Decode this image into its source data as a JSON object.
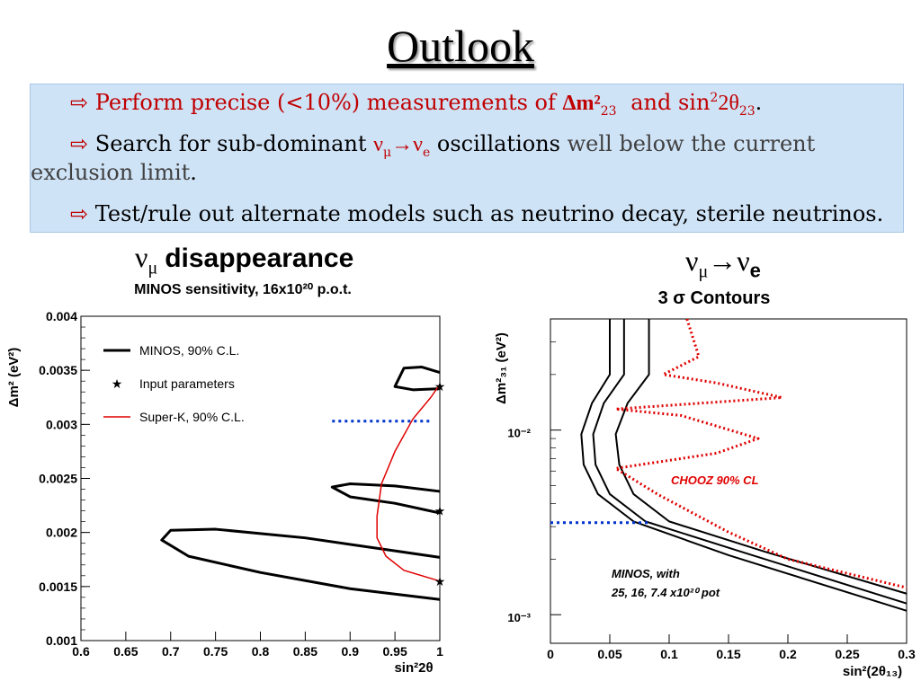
{
  "slide": {
    "title": "Outlook",
    "bullets": {
      "b1": {
        "text": "Perform precise (<10%) measurements of ",
        "dm": "Δm²",
        "dm_sub": "23",
        "and": "and sin",
        "sup": "2",
        "two_theta": "2θ",
        "theta_sub": "23",
        "period": "."
      },
      "b2": {
        "t1": "Search for sub-dominant ",
        "nu": "ν",
        "mu": "μ",
        "arrow": "→",
        "nu2": "ν",
        "e": "e",
        "t2": " oscillations",
        "t3": " well below the current",
        "line2": "exclusion limit",
        "period": "."
      },
      "b3": {
        "text": "Test/rule out alternate models such as neutrino decay, sterile neutrinos."
      }
    },
    "arrow_glyph": "⇨"
  },
  "left_panel": {
    "heading_nu": "ν",
    "heading_mu": "μ",
    "heading_text": "disappearance"
  },
  "right_panel": {
    "heading_nu": "ν",
    "heading_mu": "μ",
    "heading_arrow": "→",
    "heading_nu2": "ν",
    "heading_e": "e"
  },
  "chart_data": [
    {
      "type": "line",
      "title": "MINOS sensitivity, 16x10²⁰ p.o.t.",
      "xlabel": "sin²2θ",
      "ylabel": "Δm² (eV²)",
      "xlim": [
        0.6,
        1.0
      ],
      "ylim": [
        0.001,
        0.004
      ],
      "xticks": [
        "0.6",
        "0.65",
        "0.7",
        "0.75",
        "0.8",
        "0.85",
        "0.9",
        "0.95",
        "1"
      ],
      "yticks": [
        "0.001",
        "0.0015",
        "0.002",
        "0.0025",
        "0.003",
        "0.0035",
        "0.004"
      ],
      "legend": {
        "position": "top-left",
        "entries": [
          "MINOS, 90% C.L.",
          "Input parameters",
          "Super-K, 90% C.L."
        ]
      },
      "series": [
        {
          "name": "MINOS, 90% C.L.",
          "color": "#000000",
          "points": [
            [
              1.0,
              0.00138
            ],
            [
              0.9,
              0.00148
            ],
            [
              0.8,
              0.00163
            ],
            [
              0.72,
              0.00178
            ],
            [
              0.69,
              0.00193
            ],
            [
              0.7,
              0.00202
            ],
            [
              0.75,
              0.00203
            ],
            [
              0.85,
              0.00195
            ],
            [
              0.95,
              0.00183
            ],
            [
              1.0,
              0.00177
            ]
          ]
        },
        {
          "name": "MINOS, 90% C.L.",
          "color": "#000000",
          "points": [
            [
              1.0,
              0.00218
            ],
            [
              0.95,
              0.00227
            ],
            [
              0.9,
              0.00233
            ],
            [
              0.88,
              0.00242
            ],
            [
              0.9,
              0.00245
            ],
            [
              0.95,
              0.00243
            ],
            [
              1.0,
              0.00238
            ]
          ]
        },
        {
          "name": "MINOS, 90% C.L.",
          "color": "#000000",
          "points": [
            [
              1.0,
              0.00333
            ],
            [
              0.97,
              0.00332
            ],
            [
              0.95,
              0.00335
            ],
            [
              0.96,
              0.00352
            ],
            [
              0.98,
              0.00353
            ],
            [
              1.0,
              0.00348
            ]
          ]
        },
        {
          "name": "Super-K, 90% C.L.",
          "color": "#e00000",
          "points": [
            [
              1.0,
              0.00155
            ],
            [
              0.96,
              0.00165
            ],
            [
              0.94,
              0.00178
            ],
            [
              0.93,
              0.00195
            ],
            [
              0.93,
              0.00215
            ],
            [
              0.935,
              0.00245
            ],
            [
              0.95,
              0.00275
            ],
            [
              0.97,
              0.00305
            ],
            [
              0.99,
              0.00325
            ],
            [
              1.0,
              0.00337
            ]
          ]
        }
      ],
      "markers": {
        "name": "Input parameters",
        "points": [
          [
            1.0,
            0.00155
          ],
          [
            1.0,
            0.0022
          ],
          [
            1.0,
            0.00335
          ]
        ]
      },
      "dotted_line": {
        "color": "#0033cc",
        "points": [
          [
            0.88,
            0.00303
          ],
          [
            0.99,
            0.00303
          ]
        ]
      }
    },
    {
      "type": "line",
      "title": "3 σ Contours",
      "xlabel": "sin²(2θ₁₃)",
      "ylabel": "Δm²₃₁ (eV²)",
      "xlim": [
        0,
        0.3
      ],
      "ylim": [
        0.0007,
        0.04
      ],
      "log_y": true,
      "xticks": [
        "0",
        "0.05",
        "0.1",
        "0.15",
        "0.2",
        "0.25",
        "0.3"
      ],
      "yticks": [
        "10⁻³",
        "10⁻²"
      ],
      "annotations": [
        "CHOOZ 90% CL",
        "MINOS, with",
        "25, 16, 7.4 x10²⁰ pot"
      ],
      "series": [
        {
          "name": "25",
          "color": "#000000",
          "points": [
            [
              0.05,
              0.04
            ],
            [
              0.05,
              0.02
            ],
            [
              0.035,
              0.014
            ],
            [
              0.026,
              0.0095
            ],
            [
              0.028,
              0.0065
            ],
            [
              0.04,
              0.0045
            ],
            [
              0.07,
              0.0032
            ],
            [
              0.15,
              0.0021
            ],
            [
              0.3,
              0.00105
            ]
          ]
        },
        {
          "name": "16",
          "color": "#000000",
          "points": [
            [
              0.062,
              0.04
            ],
            [
              0.062,
              0.02
            ],
            [
              0.045,
              0.014
            ],
            [
              0.036,
              0.0095
            ],
            [
              0.038,
              0.0065
            ],
            [
              0.05,
              0.0045
            ],
            [
              0.08,
              0.0032
            ],
            [
              0.16,
              0.0022
            ],
            [
              0.3,
              0.00115
            ]
          ]
        },
        {
          "name": "7.4",
          "color": "#000000",
          "points": [
            [
              0.083,
              0.04
            ],
            [
              0.083,
              0.02
            ],
            [
              0.065,
              0.014
            ],
            [
              0.055,
              0.0095
            ],
            [
              0.058,
              0.0065
            ],
            [
              0.07,
              0.0045
            ],
            [
              0.1,
              0.0032
            ],
            [
              0.18,
              0.0022
            ],
            [
              0.3,
              0.0013
            ]
          ]
        },
        {
          "name": "CHOOZ 90% CL",
          "color": "#e00000",
          "dashed": true,
          "points": [
            [
              0.115,
              0.04
            ],
            [
              0.125,
              0.025
            ],
            [
              0.095,
              0.02
            ],
            [
              0.14,
              0.018
            ],
            [
              0.195,
              0.015
            ],
            [
              0.055,
              0.013
            ],
            [
              0.11,
              0.012
            ],
            [
              0.175,
              0.009
            ],
            [
              0.14,
              0.0075
            ],
            [
              0.055,
              0.0062
            ],
            [
              0.09,
              0.0045
            ],
            [
              0.15,
              0.0028
            ],
            [
              0.2,
              0.002
            ],
            [
              0.3,
              0.0014
            ]
          ]
        }
      ],
      "dotted_line": {
        "color": "#0033cc",
        "points": [
          [
            0.0,
            0.00315
          ],
          [
            0.085,
            0.00315
          ]
        ]
      }
    }
  ]
}
